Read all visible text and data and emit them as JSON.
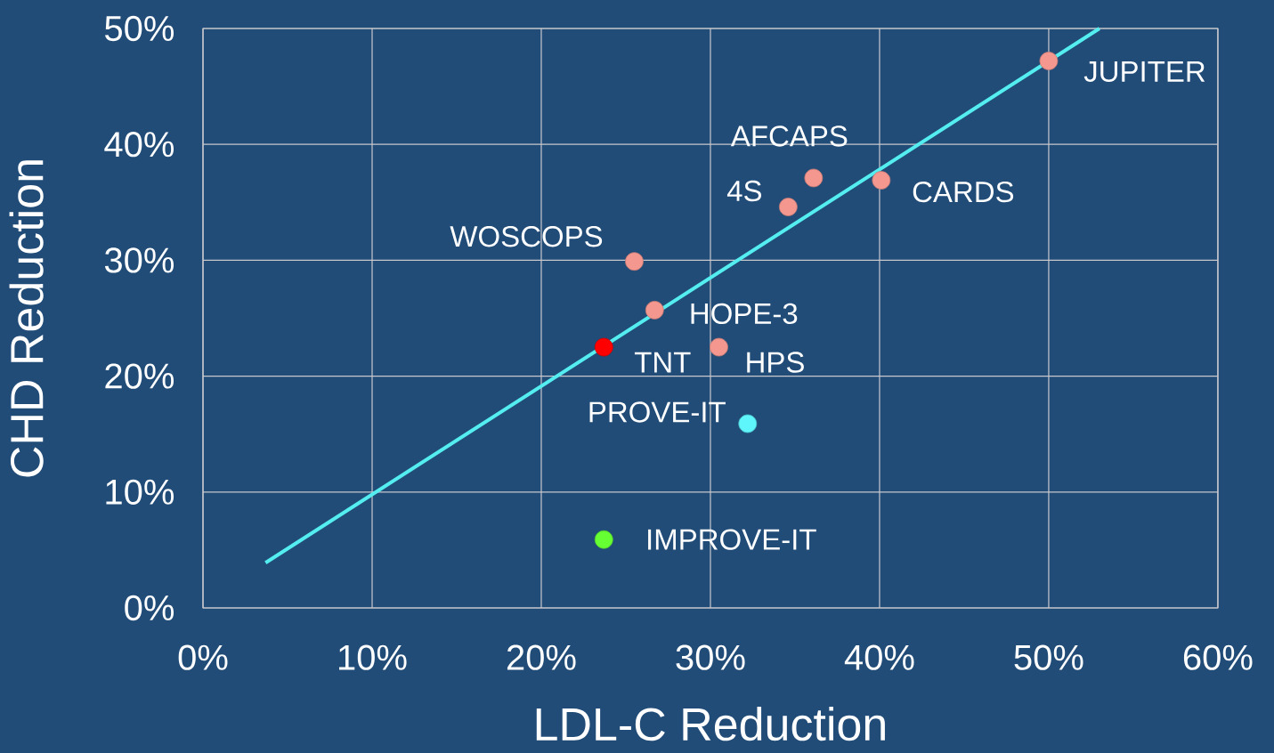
{
  "chart_data": {
    "type": "scatter",
    "xlabel": "LDL-C Reduction",
    "ylabel": "CHD Reduction",
    "xlim": [
      0,
      60
    ],
    "ylim": [
      0,
      50
    ],
    "xticks": [
      {
        "value": 0,
        "label": "0%"
      },
      {
        "value": 10,
        "label": "10%"
      },
      {
        "value": 20,
        "label": "20%"
      },
      {
        "value": 30,
        "label": "30%"
      },
      {
        "value": 40,
        "label": "40%"
      },
      {
        "value": 50,
        "label": "50%"
      },
      {
        "value": 60,
        "label": "60%"
      }
    ],
    "yticks": [
      {
        "value": 0,
        "label": "0%"
      },
      {
        "value": 10,
        "label": "10%"
      },
      {
        "value": 20,
        "label": "20%"
      },
      {
        "value": 30,
        "label": "30%"
      },
      {
        "value": 40,
        "label": "40%"
      },
      {
        "value": 50,
        "label": "50%"
      }
    ],
    "grid": true,
    "marker": "circle",
    "series": [
      {
        "type": "line",
        "marker": "none",
        "color": "#55eef0",
        "x": [
          3.7,
          53
        ],
        "values": [
          3.9,
          50
        ]
      },
      {
        "color": "#f4978f",
        "x": [
          50,
          36.1,
          40.1,
          34.6,
          25.5,
          26.7,
          30.5
        ],
        "values": [
          47.2,
          37.1,
          36.9,
          34.6,
          29.9,
          25.7,
          22.5
        ]
      },
      {
        "color": "#ff0000",
        "x": [
          23.7
        ],
        "values": [
          22.5
        ]
      },
      {
        "color": "#5ef5fb",
        "x": [
          32.2
        ],
        "values": [
          15.9
        ]
      },
      {
        "color": "#66ff33",
        "x": [
          23.7
        ],
        "values": [
          5.9
        ]
      }
    ],
    "annotations": [
      {
        "text": "JUPITER",
        "x": 50,
        "y": 47.2
      },
      {
        "text": "AFCAPS",
        "x": 36.1,
        "y": 37.1
      },
      {
        "text": "4S",
        "x": 34.6,
        "y": 34.6
      },
      {
        "text": "CARDS",
        "x": 40.1,
        "y": 36.9
      },
      {
        "text": "WOSCOPS",
        "x": 25.5,
        "y": 29.9
      },
      {
        "text": "HOPE-3",
        "x": 26.7,
        "y": 25.7
      },
      {
        "text": "TNT",
        "x": 23.7,
        "y": 22.5
      },
      {
        "text": "HPS",
        "x": 30.5,
        "y": 22.5
      },
      {
        "text": "PROVE-IT",
        "x": 32.2,
        "y": 15.9
      },
      {
        "text": "IMPROVE-IT",
        "x": 23.7,
        "y": 5.9
      }
    ]
  }
}
